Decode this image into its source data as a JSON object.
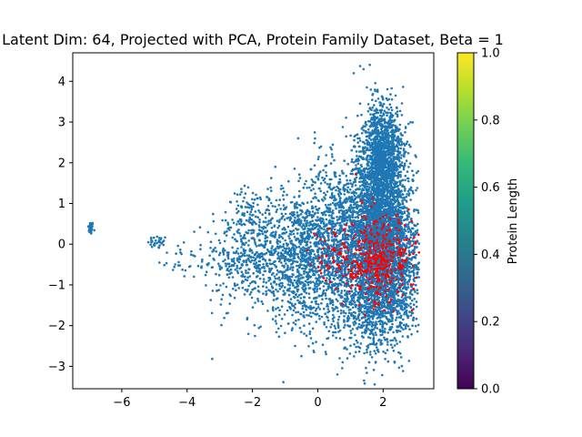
{
  "chart_data": {
    "type": "scatter",
    "title": "Latent Dim: 64, Projected with PCA, Protein Family Dataset, Beta = 1",
    "xlabel": "",
    "ylabel": "",
    "xlim": [
      -7.5,
      3.55
    ],
    "ylim": [
      -3.55,
      4.7
    ],
    "x_ticks": [
      -6,
      -4,
      -2,
      0,
      2
    ],
    "y_ticks": [
      -3,
      -2,
      -1,
      0,
      1,
      2,
      3,
      4
    ],
    "grid": false,
    "series_colors": {
      "all": "#1f77b4",
      "highlight": "#ff0000"
    },
    "clusters": [
      {
        "cx": -6.95,
        "cy": 0.4,
        "sx": 0.04,
        "sy": 0.08,
        "n": 40,
        "group": "all"
      },
      {
        "cx": -4.9,
        "cy": 0.05,
        "sx": 0.15,
        "sy": 0.08,
        "n": 30,
        "group": "all"
      },
      {
        "cx": -4.3,
        "cy": -0.35,
        "sx": 0.3,
        "sy": 0.25,
        "n": 25,
        "group": "all"
      },
      {
        "cx": -2.3,
        "cy": -0.3,
        "sx": 0.6,
        "sy": 0.6,
        "n": 350,
        "group": "all"
      },
      {
        "cx": -2.1,
        "cy": 0.8,
        "sx": 0.35,
        "sy": 0.3,
        "n": 60,
        "group": "all"
      },
      {
        "cx": -0.7,
        "cy": -0.3,
        "sx": 0.7,
        "sy": 0.8,
        "n": 900,
        "group": "all"
      },
      {
        "cx": 0.7,
        "cy": 0.0,
        "sx": 0.7,
        "sy": 1.0,
        "n": 1400,
        "group": "all"
      },
      {
        "cx": 1.9,
        "cy": 0.3,
        "sx": 0.4,
        "sy": 1.2,
        "n": 3200,
        "group": "all"
      },
      {
        "cx": 2.0,
        "cy": 2.3,
        "sx": 0.3,
        "sy": 0.6,
        "n": 900,
        "group": "all"
      },
      {
        "cx": 1.5,
        "cy": -1.5,
        "sx": 0.6,
        "sy": 0.5,
        "n": 400,
        "group": "all"
      },
      {
        "cx": 2.6,
        "cy": -0.4,
        "sx": 0.3,
        "sy": 0.9,
        "n": 500,
        "group": "all"
      },
      {
        "cx": 1.8,
        "cy": -0.4,
        "sx": 0.55,
        "sy": 0.55,
        "n": 420,
        "group": "highlight"
      },
      {
        "cx": 0.3,
        "cy": -0.3,
        "sx": 0.3,
        "sy": 0.3,
        "n": 40,
        "group": "highlight"
      }
    ],
    "outliers": [
      {
        "x": 1.1,
        "y": 4.2
      },
      {
        "x": 1.4,
        "y": 4.3
      },
      {
        "x": -0.6,
        "y": 2.6
      },
      {
        "x": -3.1,
        "y": -1.0
      },
      {
        "x": 0.6,
        "y": -3.2
      },
      {
        "x": -0.5,
        "y": -2.75
      },
      {
        "x": 2.9,
        "y": -2.0
      },
      {
        "x": -1.3,
        "y": 1.9
      },
      {
        "x": 0.1,
        "y": 2.4
      }
    ],
    "colorbar": {
      "label": "Protein Length",
      "min": 0.0,
      "max": 1.0,
      "ticks": [
        "0.0",
        "0.2",
        "0.4",
        "0.6",
        "0.8",
        "1.0"
      ],
      "colormap": "viridis",
      "stops": [
        "#440154",
        "#482878",
        "#3e4989",
        "#31688e",
        "#26828e",
        "#1f9e89",
        "#35b779",
        "#6ece58",
        "#b5de2b",
        "#fde725"
      ]
    }
  }
}
